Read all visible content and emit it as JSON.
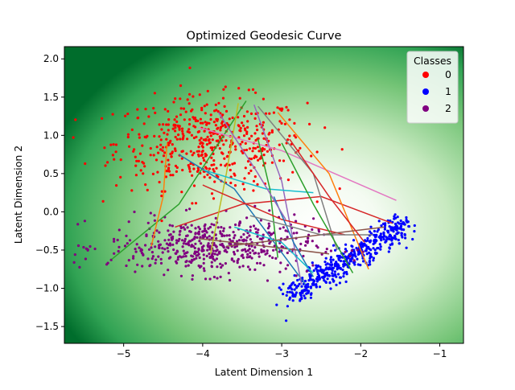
{
  "chart_data": {
    "type": "scatter",
    "title": "Optimized Geodesic Curve",
    "xlabel": "Latent Dimension 1",
    "ylabel": "Latent Dimension 2",
    "xlim": [
      -5.75,
      -0.7
    ],
    "ylim": [
      -1.72,
      2.16
    ],
    "x_ticks": [
      -5,
      -4,
      -3,
      -2,
      -1
    ],
    "y_ticks": [
      -1.5,
      -1.0,
      -0.5,
      0.0,
      0.5,
      1.0,
      1.5,
      2.0
    ],
    "x_tick_labels": [
      "−5",
      "−4",
      "−3",
      "−2",
      "−1"
    ],
    "y_tick_labels": [
      "−1.5",
      "−1.0",
      "−0.5",
      "0.0",
      "0.5",
      "1.0",
      "1.5",
      "2.0"
    ],
    "grid": false,
    "background": "green density heatmap (dark green at edges / top-left, white near center)",
    "legend": {
      "title": "Classes",
      "placement": "top-right",
      "entries": [
        {
          "label": "0",
          "color": "#ff0000"
        },
        {
          "label": "1",
          "color": "#0000ff"
        },
        {
          "label": "2",
          "color": "#800080"
        }
      ]
    },
    "clusters": [
      {
        "class": "0",
        "color": "#ff0000",
        "center": [
          -3.9,
          0.9
        ],
        "spread": [
          0.6,
          0.3
        ],
        "approx_count": 520
      },
      {
        "class": "1",
        "color": "#0000ff",
        "center": [
          -2.2,
          -0.6
        ],
        "spread": [
          0.45,
          0.35
        ],
        "approx_count": 500
      },
      {
        "class": "2",
        "color": "#800080",
        "center": [
          -3.9,
          -0.45
        ],
        "spread": [
          0.65,
          0.18
        ],
        "approx_count": 520
      }
    ],
    "curves": [
      {
        "color": "#2ca02c",
        "points": [
          [
            -5.15,
            -0.62
          ],
          [
            -4.3,
            0.1
          ],
          [
            -3.45,
            1.45
          ]
        ]
      },
      {
        "color": "#ff7f0e",
        "points": [
          [
            -4.45,
            0.9
          ],
          [
            -4.5,
            0.2
          ],
          [
            -4.65,
            -0.45
          ]
        ]
      },
      {
        "color": "#1f77b4",
        "points": [
          [
            -4.3,
            0.75
          ],
          [
            -3.6,
            0.3
          ],
          [
            -2.7,
            -0.95
          ]
        ]
      },
      {
        "color": "#d62728",
        "points": [
          [
            -4.35,
            -0.2
          ],
          [
            -3.5,
            0.1
          ],
          [
            -2.5,
            0.2
          ],
          [
            -1.6,
            -0.15
          ]
        ]
      },
      {
        "color": "#9467bd",
        "points": [
          [
            -3.35,
            1.4
          ],
          [
            -3.0,
            0.4
          ],
          [
            -2.75,
            -0.95
          ]
        ]
      },
      {
        "color": "#8c564b",
        "points": [
          [
            -4.05,
            -0.35
          ],
          [
            -3.2,
            -0.45
          ],
          [
            -2.4,
            -0.55
          ]
        ]
      },
      {
        "color": "#e377c2",
        "points": [
          [
            -4.05,
            1.1
          ],
          [
            -3.0,
            0.8
          ],
          [
            -1.55,
            0.15
          ]
        ]
      },
      {
        "color": "#7f7f7f",
        "points": [
          [
            -3.3,
            1.38
          ],
          [
            -2.6,
            0.5
          ],
          [
            -2.3,
            -0.5
          ]
        ]
      },
      {
        "color": "#bcbd22",
        "points": [
          [
            -3.55,
            1.42
          ],
          [
            -3.7,
            0.5
          ],
          [
            -3.9,
            -0.55
          ]
        ]
      },
      {
        "color": "#17becf",
        "points": [
          [
            -4.0,
            0.55
          ],
          [
            -3.2,
            0.3
          ],
          [
            -2.6,
            0.25
          ]
        ]
      },
      {
        "color": "#ff7f0e",
        "points": [
          [
            -3.05,
            1.3
          ],
          [
            -2.4,
            0.5
          ],
          [
            -1.9,
            -0.75
          ]
        ]
      },
      {
        "color": "#2ca02c",
        "points": [
          [
            -3.3,
            0.95
          ],
          [
            -3.15,
            0.3
          ],
          [
            -3.05,
            -0.6
          ]
        ]
      },
      {
        "color": "#d62728",
        "points": [
          [
            -4.0,
            0.35
          ],
          [
            -3.0,
            -0.1
          ],
          [
            -2.2,
            -0.3
          ]
        ]
      },
      {
        "color": "#1f77b4",
        "points": [
          [
            -3.1,
            0.2
          ],
          [
            -2.85,
            -0.4
          ],
          [
            -2.6,
            -0.85
          ]
        ]
      },
      {
        "color": "#17becf",
        "points": [
          [
            -3.6,
            -0.2
          ],
          [
            -3.0,
            -0.4
          ],
          [
            -2.6,
            -0.8
          ]
        ]
      },
      {
        "color": "#8c564b",
        "points": [
          [
            -3.7,
            -0.45
          ],
          [
            -2.9,
            -0.35
          ],
          [
            -1.7,
            -0.2
          ]
        ]
      },
      {
        "color": "#7f7f7f",
        "points": [
          [
            -3.4,
            -0.05
          ],
          [
            -2.5,
            -0.3
          ],
          [
            -1.85,
            -0.3
          ]
        ]
      },
      {
        "color": "#9467bd",
        "points": [
          [
            -3.8,
            1.3
          ],
          [
            -3.3,
            0.5
          ],
          [
            -2.95,
            -0.1
          ]
        ]
      },
      {
        "color": "#2ca02c",
        "points": [
          [
            -3.0,
            0.9
          ],
          [
            -2.6,
            0.1
          ],
          [
            -2.1,
            -0.8
          ]
        ]
      },
      {
        "color": "#d62728",
        "points": [
          [
            -2.9,
            0.95
          ],
          [
            -2.4,
            0.2
          ],
          [
            -1.95,
            -0.4
          ]
        ]
      }
    ]
  }
}
